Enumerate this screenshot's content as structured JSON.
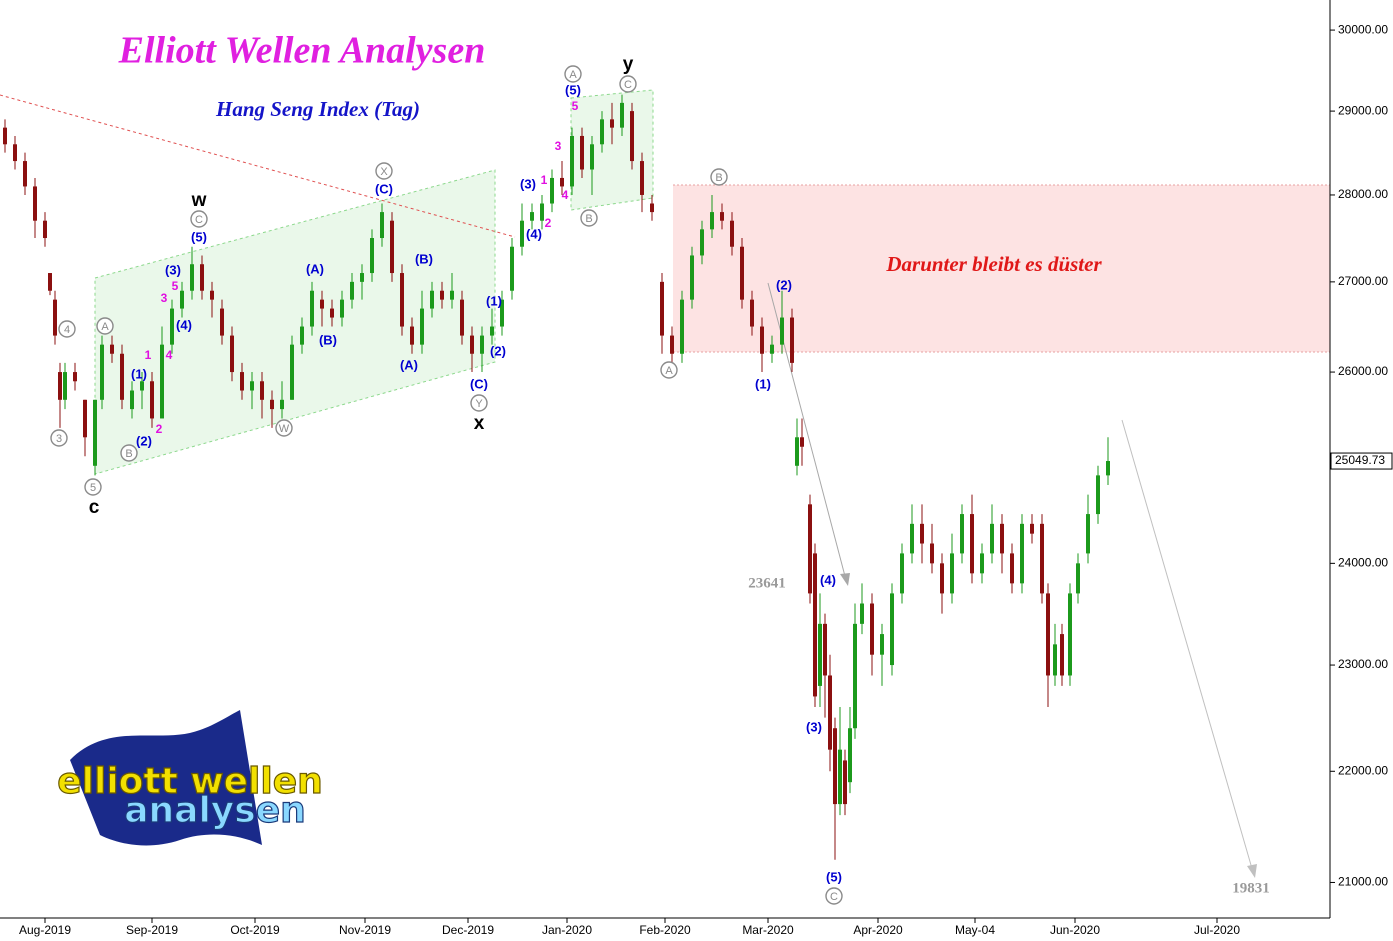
{
  "chart_data": {
    "type": "candlestick",
    "title": "Elliott Wellen Analysen",
    "subtitle": "Hang Seng Index (Tag)",
    "zone_label": "Darunter bleibt es düster",
    "log_scale": true,
    "up_color": "#1c9a1c",
    "down_color": "#8b1010",
    "x": [
      1,
      3,
      5,
      7,
      9,
      10,
      11,
      12,
      13,
      15,
      17,
      19,
      20.4,
      22.4,
      24.4,
      26.4,
      28.4,
      30.4,
      32.4,
      34.4,
      36.4,
      38.4,
      40.4,
      42.4,
      44.4,
      46.4,
      48.4,
      50.4,
      52.4,
      54.4,
      56.4,
      58.4,
      60.4,
      62.4,
      64.4,
      66.4,
      68.4,
      70.4,
      72.4,
      74.4,
      76.4,
      78.4,
      80.4,
      82.4,
      84.4,
      86.4,
      88.4,
      90.4,
      92.4,
      94.4,
      96.4,
      98.4,
      100.4,
      102.4,
      104.4,
      106.4,
      108.4,
      110.4,
      112.4,
      114.4,
      116.4,
      118.4,
      120.4,
      122.4,
      124.4,
      126.4,
      128.4,
      130.4,
      132.4,
      134.4,
      136.4,
      138.4,
      140.4,
      142.4,
      144.4,
      146.4,
      148.4,
      150.4,
      152.4,
      154.4,
      156.4,
      158.4,
      159.4,
      160.4,
      162,
      163,
      164,
      165,
      166,
      167,
      168,
      169,
      170,
      171,
      172.4,
      174.4,
      176.4,
      178.4,
      180.4,
      182.4,
      184.4,
      186.4,
      188.4,
      190.4,
      192.4,
      194.4,
      196.4,
      198.4,
      200.4,
      202.4,
      204.4,
      206.4,
      208.4,
      209.6,
      211,
      212.4,
      214,
      215.6,
      217.6,
      219.6,
      221.6
    ],
    "open": [
      28800,
      28600,
      28400,
      28100,
      27700,
      27100,
      26800,
      26000,
      25700,
      26000,
      25700,
      25000,
      25700,
      26300,
      26200,
      25600,
      25800,
      25900,
      25500,
      26300,
      26700,
      26900,
      27200,
      26900,
      26700,
      26400,
      26000,
      25800,
      25900,
      25700,
      25600,
      25700,
      26300,
      26500,
      26800,
      26700,
      26600,
      26800,
      27000,
      27100,
      27500,
      27700,
      27100,
      26500,
      26300,
      26700,
      26900,
      26800,
      26800,
      26400,
      26200,
      26400,
      26500,
      26900,
      27400,
      27700,
      27700,
      27900,
      28200,
      28100,
      28700,
      28300,
      28600,
      28900,
      28800,
      29000,
      28400,
      27900,
      27000,
      26400,
      26200,
      26800,
      27300,
      27600,
      27800,
      27700,
      27400,
      26800,
      26500,
      26200,
      26300,
      26600,
      25000,
      25300,
      24600,
      24100,
      22800,
      23400,
      22900,
      22400,
      21700,
      22100,
      21900,
      22400,
      23400,
      23600,
      23100,
      23000,
      23700,
      24100,
      24400,
      24200,
      24000,
      23700,
      24100,
      24500,
      23900,
      24100,
      24400,
      24100,
      23800,
      24400,
      24400,
      23700,
      22900,
      23300,
      22900,
      23700,
      24100,
      24500,
      24900
    ],
    "high": [
      28900,
      28700,
      28500,
      28200,
      27800,
      27100,
      26900,
      26100,
      26100,
      26100,
      25700,
      25700,
      26400,
      26400,
      26300,
      25900,
      26000,
      26000,
      26500,
      26800,
      27000,
      27400,
      27300,
      27000,
      26800,
      26500,
      26100,
      26000,
      26000,
      25800,
      25900,
      26400,
      26600,
      27000,
      26900,
      26800,
      26900,
      27100,
      27200,
      27600,
      27900,
      27800,
      27200,
      26600,
      26900,
      27000,
      27000,
      27100,
      26900,
      26500,
      26500,
      26700,
      26900,
      27500,
      27900,
      27900,
      28000,
      28300,
      28400,
      28800,
      28800,
      28700,
      29000,
      29100,
      29200,
      29100,
      28500,
      28000,
      27100,
      26500,
      26900,
      27400,
      27700,
      28000,
      27900,
      27800,
      27500,
      26900,
      26600,
      26400,
      26900,
      26700,
      25500,
      25500,
      24700,
      24200,
      23700,
      23500,
      23100,
      22500,
      22600,
      22200,
      22600,
      23600,
      23800,
      23700,
      23400,
      23800,
      24200,
      24600,
      24600,
      24400,
      24100,
      24300,
      24600,
      24700,
      24200,
      24600,
      24500,
      24200,
      24500,
      24500,
      24500,
      23800,
      23400,
      23400,
      23800,
      24100,
      24700,
      25000,
      25300
    ],
    "low": [
      28500,
      28300,
      28000,
      27500,
      27400,
      26850,
      26300,
      25400,
      25600,
      25800,
      25100,
      24900,
      25600,
      26100,
      25600,
      25500,
      25600,
      25400,
      25500,
      26200,
      26600,
      26800,
      26800,
      26600,
      26300,
      25900,
      25700,
      25600,
      25500,
      25400,
      25500,
      25700,
      26200,
      26400,
      26500,
      26500,
      26500,
      26700,
      26800,
      27000,
      27400,
      27000,
      26400,
      26200,
      26200,
      26600,
      26700,
      26700,
      26300,
      26000,
      26000,
      26300,
      26400,
      26800,
      27300,
      27600,
      27600,
      27800,
      28000,
      28000,
      28200,
      28000,
      28500,
      28600,
      28700,
      28300,
      27800,
      27700,
      26200,
      26100,
      26100,
      26700,
      27200,
      27500,
      27600,
      27300,
      26700,
      26400,
      26000,
      26100,
      26200,
      26000,
      24900,
      25000,
      23600,
      22600,
      22600,
      22500,
      22000,
      21200,
      21600,
      21600,
      21800,
      22300,
      23300,
      22900,
      22800,
      22900,
      23600,
      24000,
      24000,
      23900,
      23500,
      23600,
      24000,
      23800,
      23800,
      24000,
      23900,
      23700,
      23700,
      24200,
      23600,
      22600,
      22800,
      22800,
      22800,
      23600,
      24000,
      24400,
      24800
    ],
    "close": [
      28600,
      28400,
      28100,
      27700,
      27500,
      26900,
      26400,
      25700,
      26000,
      25900,
      25300,
      25700,
      26300,
      26200,
      25700,
      25800,
      25900,
      25500,
      26300,
      26700,
      26900,
      27200,
      26900,
      26800,
      26400,
      26000,
      25800,
      25900,
      25700,
      25600,
      25700,
      26300,
      26500,
      26900,
      26700,
      26600,
      26800,
      27000,
      27100,
      27500,
      27800,
      27100,
      26500,
      26300,
      26700,
      26900,
      26800,
      26900,
      26400,
      26200,
      26400,
      26500,
      26800,
      27400,
      27700,
      27800,
      27900,
      28200,
      28100,
      28700,
      28300,
      28600,
      28900,
      28800,
      29100,
      28400,
      28000,
      27800,
      26400,
      26200,
      26800,
      27300,
      27600,
      27800,
      27700,
      27400,
      26800,
      26500,
      26200,
      26300,
      26600,
      26100,
      25300,
      25200,
      23700,
      22700,
      23400,
      22900,
      22200,
      21700,
      22200,
      21700,
      22400,
      23400,
      23600,
      23100,
      23300,
      23700,
      24100,
      24400,
      24200,
      24000,
      23700,
      24100,
      24500,
      23900,
      24100,
      24400,
      24100,
      23800,
      24400,
      24300,
      23700,
      22900,
      23200,
      22900,
      23700,
      24000,
      24500,
      24900,
      25050
    ],
    "last_price": 25049.73,
    "xlim": [
      0,
      266
    ],
    "xticks": [
      {
        "value": 9,
        "label": "Aug-2019"
      },
      {
        "value": 30.4,
        "label": "Sep-2019"
      },
      {
        "value": 51,
        "label": "Oct-2019"
      },
      {
        "value": 73,
        "label": "Nov-2019"
      },
      {
        "value": 93.6,
        "label": "Dec-2019"
      },
      {
        "value": 113.4,
        "label": "Jan-2020"
      },
      {
        "value": 133,
        "label": "Feb-2020"
      },
      {
        "value": 153.6,
        "label": "Mar-2020"
      },
      {
        "value": 175.6,
        "label": "Apr-2020"
      },
      {
        "value": 195,
        "label": "May-04"
      },
      {
        "value": 215,
        "label": "Jun-2020"
      },
      {
        "value": 243.4,
        "label": "Jul-2020"
      }
    ],
    "ylim": [
      20690,
      30380
    ],
    "yticks": [
      {
        "value": 21000,
        "label": "21000.00"
      },
      {
        "value": 22000,
        "label": "22000.00"
      },
      {
        "value": 23000,
        "label": "23000.00"
      },
      {
        "value": 24000,
        "label": "24000.00"
      },
      {
        "value": 25000,
        "label": "25000.00"
      },
      {
        "value": 26000,
        "label": "26000.00"
      },
      {
        "value": 27000,
        "label": "27000.00"
      },
      {
        "value": 28000,
        "label": "28000.00"
      },
      {
        "value": 29000,
        "label": "29000.00"
      },
      {
        "value": 30000,
        "label": "30000.00"
      }
    ],
    "circled_labels": [
      "4",
      "3",
      "5",
      "A",
      "B",
      "C",
      "W",
      "X",
      "Y",
      "A",
      "C",
      "B",
      "A",
      "B",
      "C"
    ],
    "blue_labels": [
      "(1)",
      "(2)",
      "(3)",
      "(4)",
      "(5)",
      "(A)",
      "(B)",
      "(C)",
      "(B)",
      "(A)",
      "(1)",
      "(2)",
      "(C)",
      "(3)",
      "(4)",
      "(5)",
      "(2)",
      "(1)",
      "(4)",
      "(3)",
      "(5)"
    ],
    "magenta_labels": [
      "1",
      "2",
      "3",
      "4",
      "5",
      "1",
      "2",
      "3",
      "4",
      "5"
    ],
    "degree_labels": [
      "w",
      "x",
      "y",
      "c"
    ],
    "price_targets": [
      23641,
      19831
    ],
    "logo": {
      "line1": "elliott wellen",
      "line2": "analysen"
    }
  }
}
